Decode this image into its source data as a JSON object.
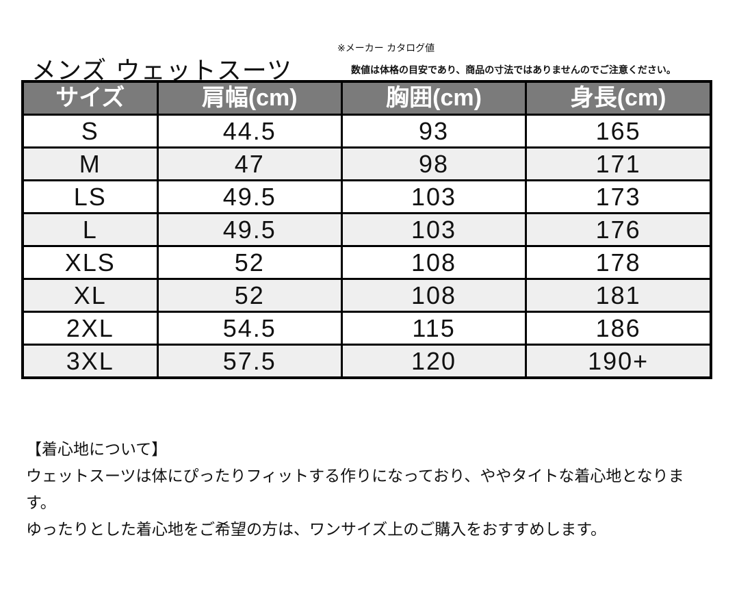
{
  "header": {
    "title": "メンズ ウェットスーツ",
    "note_1": "※メーカー カタログ値",
    "note_2": "数値は体格の目安であり、商品の寸法ではありませんのでご注意ください。"
  },
  "table": {
    "columns": [
      "サイズ",
      "肩幅(cm)",
      "胸囲(cm)",
      "身長(cm)"
    ],
    "rows": [
      [
        "S",
        "44.5",
        "93",
        "165"
      ],
      [
        "M",
        "47",
        "98",
        "171"
      ],
      [
        "LS",
        "49.5",
        "103",
        "173"
      ],
      [
        "L",
        "49.5",
        "103",
        "176"
      ],
      [
        "XLS",
        "52",
        "108",
        "178"
      ],
      [
        "XL",
        "52",
        "108",
        "181"
      ],
      [
        "2XL",
        "54.5",
        "115",
        "186"
      ],
      [
        "3XL",
        "57.5",
        "120",
        "190+"
      ]
    ]
  },
  "fit": {
    "heading": "【着心地について】",
    "paragraphs": [
      "ウェットスーツは体にぴったりフィットする作りになっており、ややタイトな着心地となります。",
      "ゆったりとした着心地をご希望の方は、ワンサイズ上のご購入をおすすめします。"
    ]
  }
}
